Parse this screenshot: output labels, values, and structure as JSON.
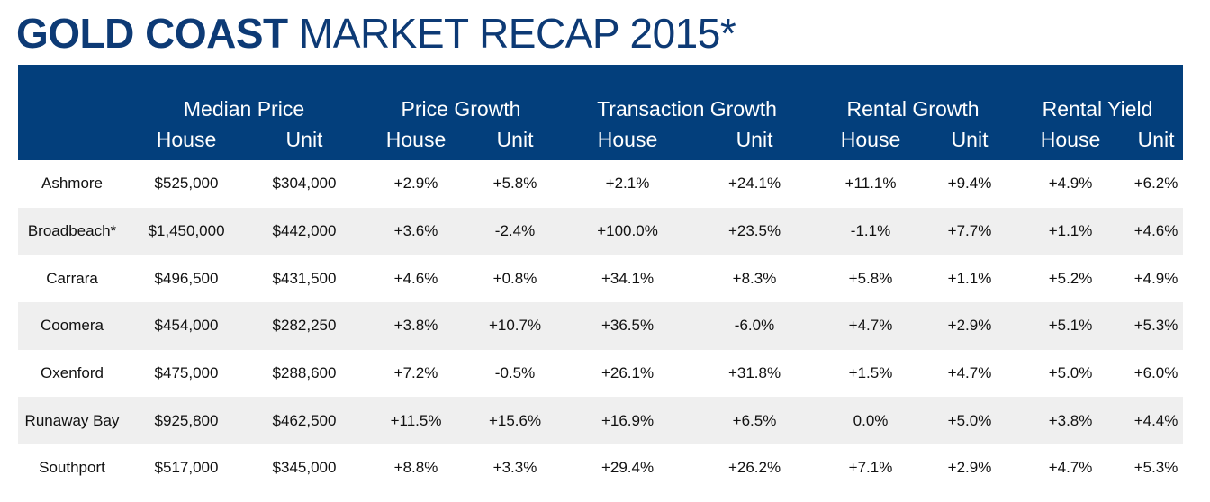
{
  "title": {
    "bold": "GOLD COAST",
    "rest": "MARKET RECAP 2015*"
  },
  "header": {
    "groups": [
      "Median Price",
      "Price Growth",
      "Transaction Growth",
      "Rental Growth",
      "Rental Yield"
    ],
    "subs": [
      "House",
      "Unit",
      "House",
      "Unit",
      "House",
      "Unit",
      "House",
      "Unit",
      "House",
      "Unit"
    ]
  },
  "rows": [
    [
      "Ashmore",
      "$525,000",
      "$304,000",
      "+2.9%",
      "+5.8%",
      "+2.1%",
      "+24.1%",
      "+11.1%",
      "+9.4%",
      "+4.9%",
      "+6.2%"
    ],
    [
      "Broadbeach*",
      "$1,450,000",
      "$442,000",
      "+3.6%",
      "-2.4%",
      "+100.0%",
      "+23.5%",
      "-1.1%",
      "+7.7%",
      "+1.1%",
      "+4.6%"
    ],
    [
      "Carrara",
      "$496,500",
      "$431,500",
      "+4.6%",
      "+0.8%",
      "+34.1%",
      "+8.3%",
      "+5.8%",
      "+1.1%",
      "+5.2%",
      "+4.9%"
    ],
    [
      "Coomera",
      "$454,000",
      "$282,250",
      "+3.8%",
      "+10.7%",
      "+36.5%",
      "-6.0%",
      "+4.7%",
      "+2.9%",
      "+5.1%",
      "+5.3%"
    ],
    [
      "Oxenford",
      "$475,000",
      "$288,600",
      "+7.2%",
      "-0.5%",
      "+26.1%",
      "+31.8%",
      "+1.5%",
      "+4.7%",
      "+5.0%",
      "+6.0%"
    ],
    [
      "Runaway Bay",
      "$925,800",
      "$462,500",
      "+11.5%",
      "+15.6%",
      "+16.9%",
      "+6.5%",
      "0.0%",
      "+5.0%",
      "+3.8%",
      "+4.4%"
    ],
    [
      "Southport",
      "$517,000",
      "$345,000",
      "+8.8%",
      "+3.3%",
      "+29.4%",
      "+26.2%",
      "+7.1%",
      "+2.9%",
      "+4.7%",
      "+5.3%"
    ]
  ]
}
